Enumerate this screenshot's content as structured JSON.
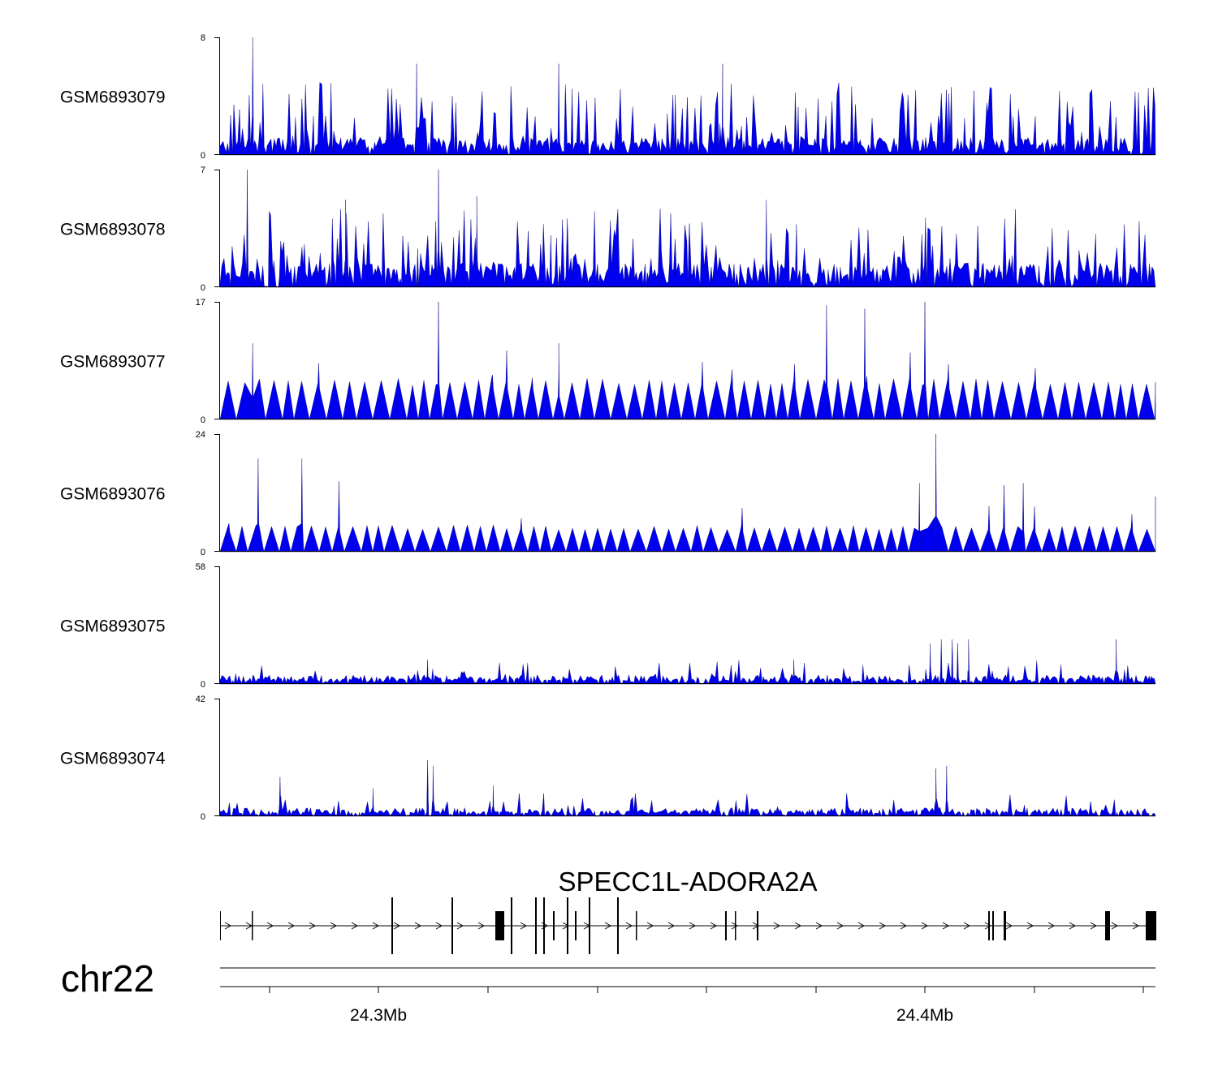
{
  "chart_data": {
    "type": "area",
    "title": "",
    "region": {
      "chromosome": "chr22",
      "start_mb": 24.251,
      "end_mb": 24.422
    },
    "x_axis": {
      "label": "chr22",
      "major_ticks_mb": [
        24.3,
        24.4
      ],
      "major_tick_labels": [
        "24.3Mb",
        "24.4Mb"
      ],
      "minor_ticks_mb": [
        24.26,
        24.3,
        24.32,
        24.34,
        24.36,
        24.38,
        24.4,
        24.42,
        24.44
      ]
    },
    "series": [
      {
        "name": "GSM6893079",
        "ylim": [
          0,
          8
        ],
        "ytick_labels": [
          "0",
          "8"
        ],
        "color": "#0000ee",
        "style": "sparse",
        "baseline": 1,
        "peak_prob": 0.22,
        "peaks_mb": [
          [
            24.277,
            8
          ],
          [
            24.251,
            6.7
          ],
          [
            24.262,
            6.2
          ],
          [
            24.307,
            6.2
          ],
          [
            24.333,
            6.2
          ],
          [
            24.363,
            6.2
          ]
        ]
      },
      {
        "name": "GSM6893078",
        "ylim": [
          0,
          7
        ],
        "ytick_labels": [
          "0",
          "7"
        ],
        "color": "#0000ee",
        "style": "sparse",
        "baseline": 1.2,
        "peak_prob": 0.25,
        "peaks_mb": [
          [
            24.276,
            7
          ],
          [
            24.311,
            7
          ],
          [
            24.254,
            5
          ],
          [
            24.294,
            5.2
          ],
          [
            24.318,
            5.4
          ],
          [
            24.371,
            5.2
          ]
        ]
      },
      {
        "name": "GSM6893077",
        "ylim": [
          0,
          17
        ],
        "ytick_labels": [
          "0",
          "17"
        ],
        "color": "#0000ee",
        "style": "triangles",
        "baseline": 5.5,
        "peak_prob": 0.15,
        "peaks_mb": [
          [
            24.311,
            17
          ],
          [
            24.4,
            17
          ],
          [
            24.382,
            16.5
          ],
          [
            24.389,
            16
          ],
          [
            24.277,
            11
          ],
          [
            24.333,
            11
          ]
        ]
      },
      {
        "name": "GSM6893076",
        "ylim": [
          0,
          24
        ],
        "ytick_labels": [
          "0",
          "24"
        ],
        "color": "#0000ee",
        "style": "triangles",
        "baseline": 5,
        "peak_prob": 0.15,
        "peaks_mb": [
          [
            24.402,
            24
          ],
          [
            24.251,
            19
          ],
          [
            24.286,
            19
          ],
          [
            24.278,
            19
          ],
          [
            24.418,
            14
          ],
          [
            24.399,
            14
          ]
        ]
      },
      {
        "name": "GSM6893075",
        "ylim": [
          0,
          58
        ],
        "ytick_labels": [
          "0",
          "58"
        ],
        "color": "#0000ee",
        "style": "decay",
        "baseline": 3,
        "peak_prob": 0.08,
        "peaks_mb": [
          [
            24.251,
            58
          ],
          [
            24.252,
            32
          ],
          [
            24.256,
            16
          ],
          [
            24.401,
            20
          ],
          [
            24.403,
            22
          ],
          [
            24.406,
            20
          ],
          [
            24.405,
            22
          ],
          [
            24.408,
            22
          ],
          [
            24.435,
            22
          ],
          [
            24.376,
            12
          ],
          [
            24.309,
            12
          ]
        ]
      },
      {
        "name": "GSM6893074",
        "ylim": [
          0,
          42
        ],
        "ytick_labels": [
          "0",
          "42"
        ],
        "color": "#0000ee",
        "style": "decay",
        "baseline": 2,
        "peak_prob": 0.08,
        "peaks_mb": [
          [
            24.251,
            42
          ],
          [
            24.252,
            25
          ],
          [
            24.255,
            14
          ],
          [
            24.282,
            14
          ],
          [
            24.309,
            20
          ],
          [
            24.31,
            18
          ],
          [
            24.321,
            11
          ],
          [
            24.402,
            17
          ],
          [
            24.404,
            18
          ],
          [
            24.448,
            18
          ],
          [
            24.299,
            10
          ]
        ]
      }
    ],
    "gene": {
      "name": "SPECC1L-ADORA2A",
      "strand": "+",
      "exons_mb": [
        [
          24.251,
          24.2512
        ],
        [
          24.257,
          24.2572
        ],
        [
          24.282,
          24.2823
        ],
        [
          24.287,
          24.2873
        ],
        [
          24.301,
          24.3028
        ],
        [
          24.304,
          24.3043
        ],
        [
          24.3065,
          24.3068
        ],
        [
          24.3085,
          24.3088
        ],
        [
          24.3105,
          24.3108
        ],
        [
          24.3155,
          24.3158
        ],
        [
          24.3175,
          24.3178
        ],
        [
          24.3225,
          24.3228
        ],
        [
          24.3275,
          24.3278
        ],
        [
          24.3305,
          24.3308
        ],
        [
          24.345,
          24.3453
        ],
        [
          24.3585,
          24.3588
        ],
        [
          24.3605,
          24.3608
        ],
        [
          24.3645,
          24.3648
        ],
        [
          24.4055,
          24.4058
        ],
        [
          24.4065,
          24.4068
        ],
        [
          24.4082,
          24.4086
        ],
        [
          24.4255,
          24.4262
        ],
        [
          24.447,
          24.449
        ]
      ]
    }
  }
}
